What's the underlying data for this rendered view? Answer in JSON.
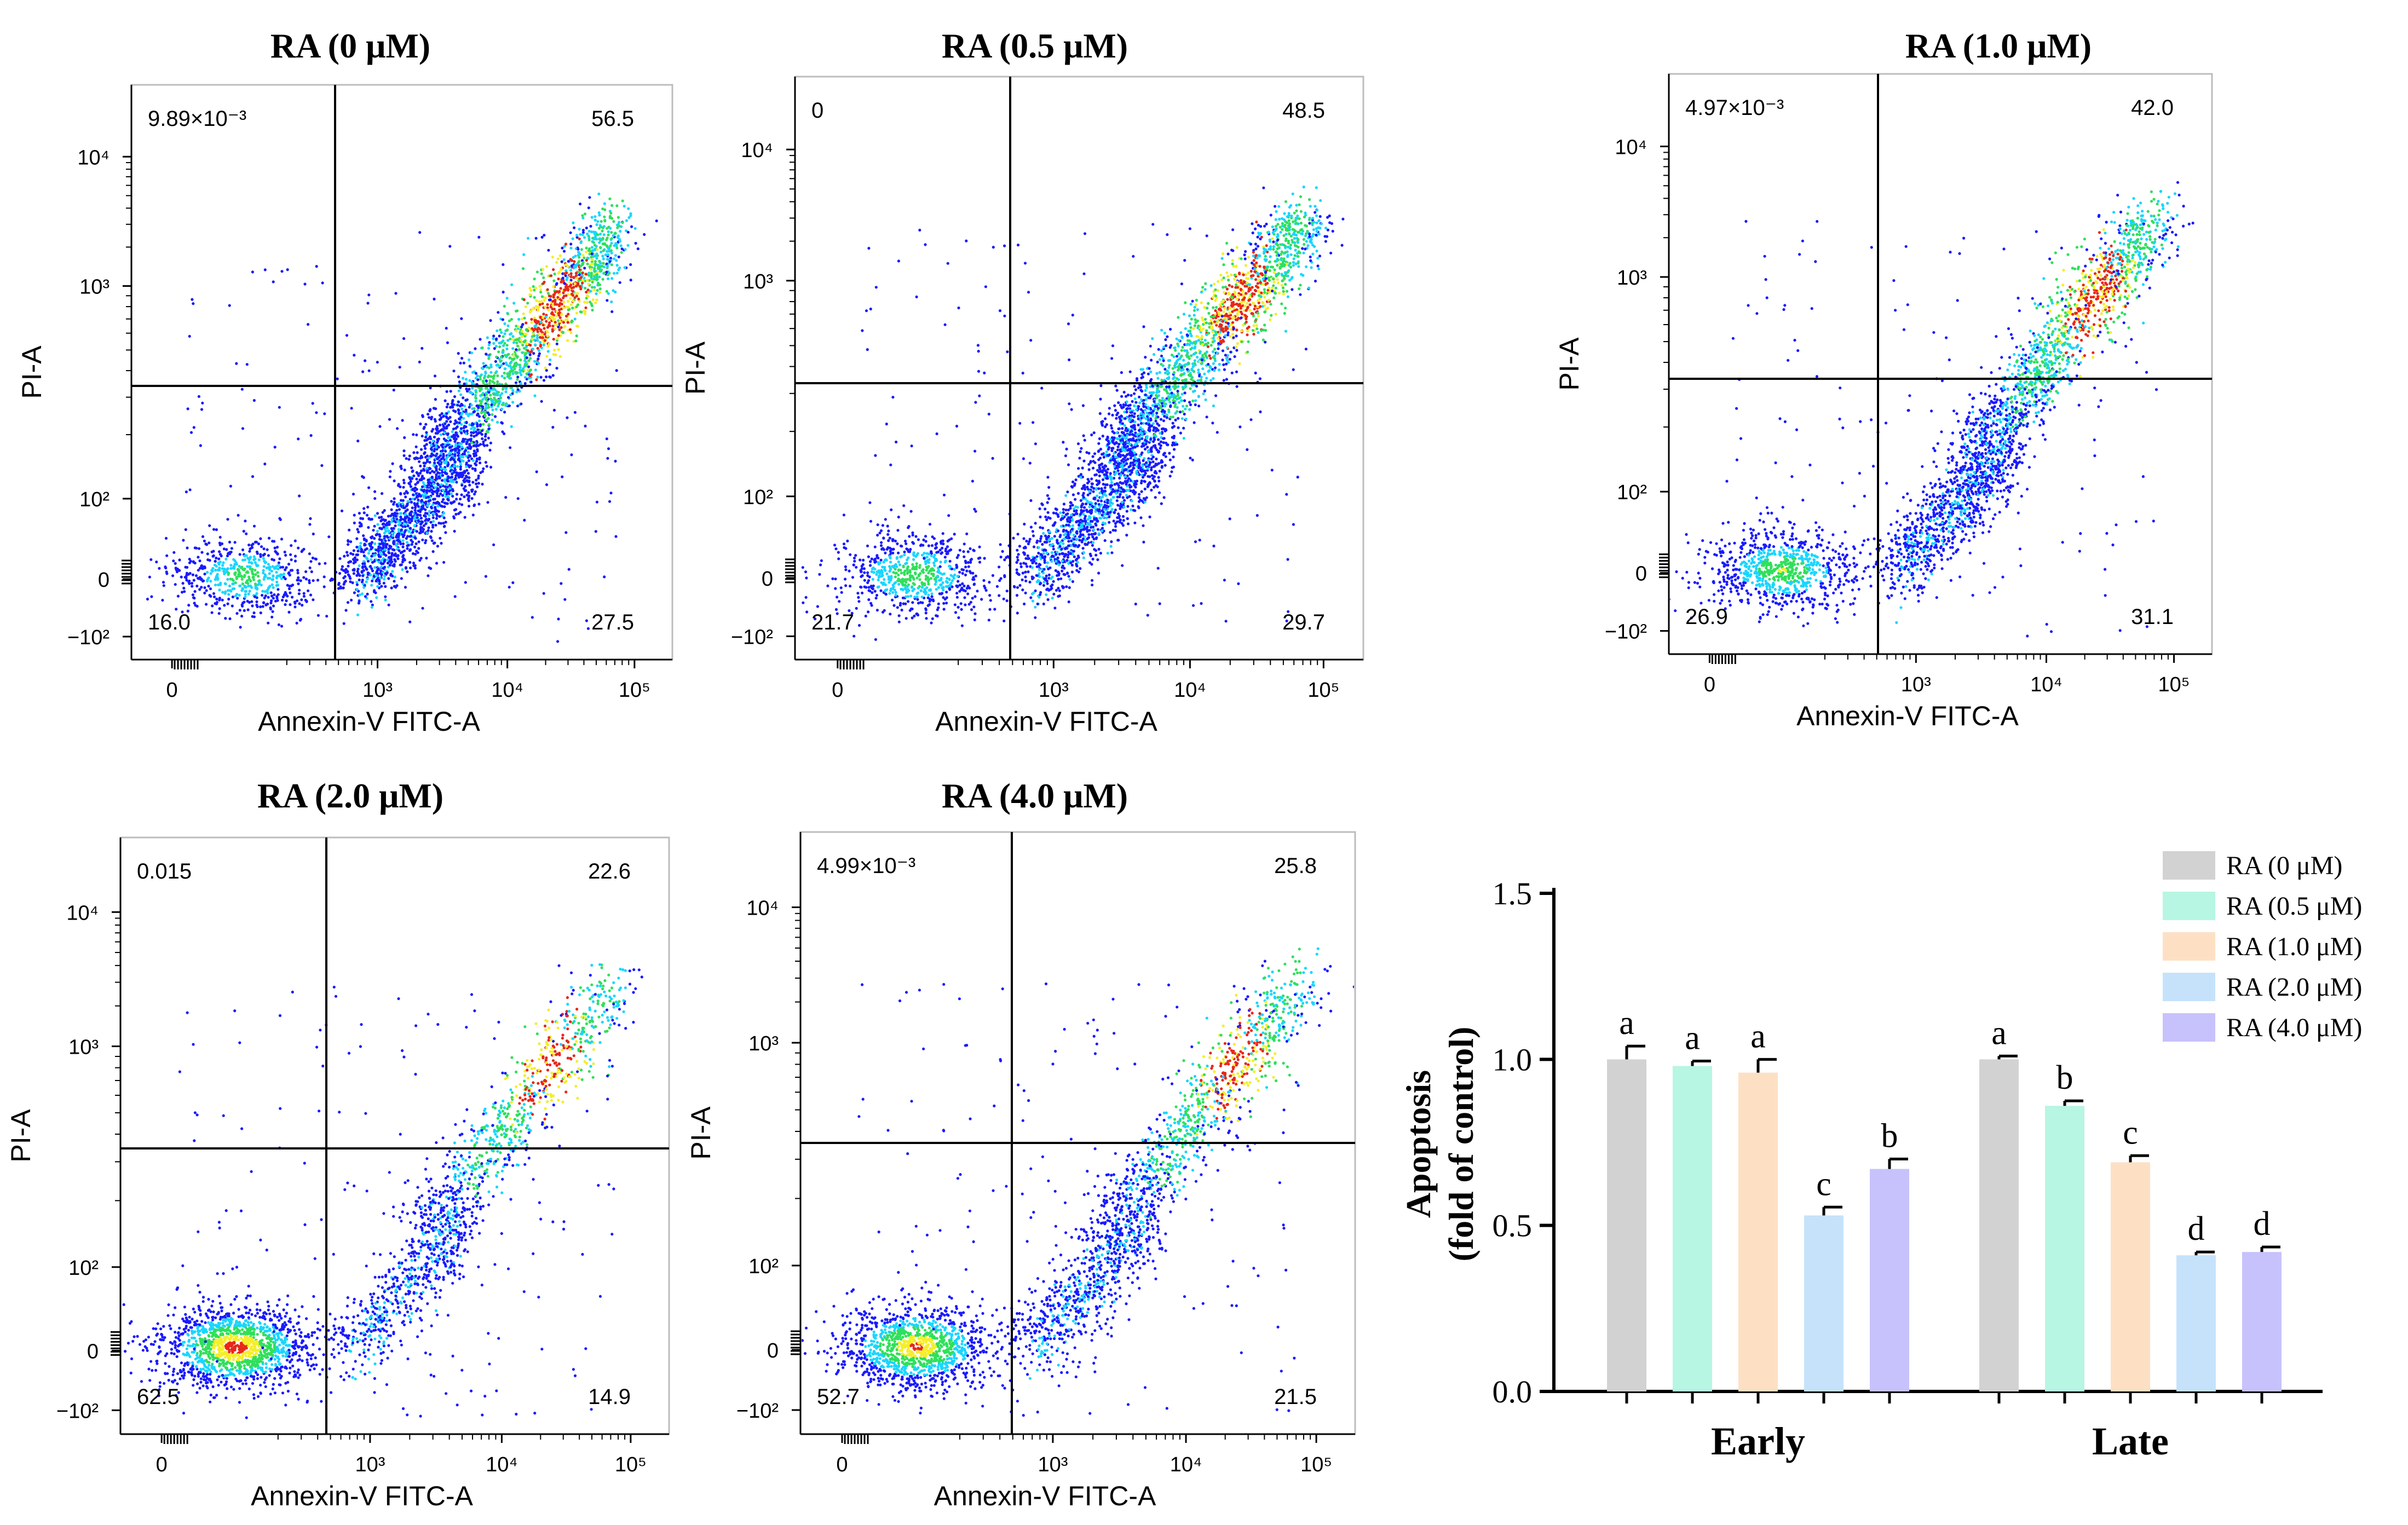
{
  "colors": {
    "axis": "#000000",
    "dot_low": "#1a1aff",
    "dot_mid": "#19d6ff",
    "dot_green": "#2fe05a",
    "dot_yellow": "#f5ee2a",
    "dot_red": "#e8261a"
  },
  "chart_data": [
    {
      "type": "scatter",
      "title": "RA (0 μM)",
      "xlabel": "Annexin-V FITC-A",
      "ylabel": "PI-A",
      "x_ticks": [
        "0",
        "10³",
        "10⁴",
        "10⁵"
      ],
      "y_ticks": [
        "10⁴",
        "10³",
        "10²",
        "0",
        "−10²"
      ],
      "quadrants": {
        "upper_left": "9.89×10⁻³",
        "upper_right": "56.5",
        "lower_left": "16.0",
        "lower_right": "27.5"
      }
    },
    {
      "type": "scatter",
      "title": "RA (0.5 μM)",
      "xlabel": "Annexin-V FITC-A",
      "ylabel": "PI-A",
      "x_ticks": [
        "0",
        "10³",
        "10⁴",
        "10⁵"
      ],
      "y_ticks": [
        "10⁴",
        "10³",
        "10²",
        "0",
        "−10²"
      ],
      "quadrants": {
        "upper_left": "0",
        "upper_right": "48.5",
        "lower_left": "21.7",
        "lower_right": "29.7"
      }
    },
    {
      "type": "scatter",
      "title": "RA (1.0 μM)",
      "xlabel": "Annexin-V FITC-A",
      "ylabel": "PI-A",
      "x_ticks": [
        "0",
        "10³",
        "10⁴",
        "10⁵"
      ],
      "y_ticks": [
        "10⁴",
        "10³",
        "10²",
        "0",
        "−10²"
      ],
      "quadrants": {
        "upper_left": "4.97×10⁻³",
        "upper_right": "42.0",
        "lower_left": "26.9",
        "lower_right": "31.1"
      }
    },
    {
      "type": "scatter",
      "title": "RA (2.0 μM)",
      "xlabel": "Annexin-V FITC-A",
      "ylabel": "PI-A",
      "x_ticks": [
        "0",
        "10³",
        "10⁴",
        "10⁵"
      ],
      "y_ticks": [
        "10⁴",
        "10³",
        "10²",
        "0",
        "−10²"
      ],
      "quadrants": {
        "upper_left": "0.015",
        "upper_right": "22.6",
        "lower_left": "62.5",
        "lower_right": "14.9"
      }
    },
    {
      "type": "scatter",
      "title": "RA (4.0 μM)",
      "xlabel": "Annexin-V FITC-A",
      "ylabel": "PI-A",
      "x_ticks": [
        "0",
        "10³",
        "10⁴",
        "10⁵"
      ],
      "y_ticks": [
        "10⁴",
        "10³",
        "10²",
        "0",
        "−10²"
      ],
      "quadrants": {
        "upper_left": "4.99×10⁻³",
        "upper_right": "25.8",
        "lower_left": "52.7",
        "lower_right": "21.5"
      }
    },
    {
      "type": "bar",
      "ylabel_line1": "Apoptosis",
      "ylabel_line2": "(fold of control)",
      "ylim": [
        0.0,
        1.5
      ],
      "y_ticks": [
        "0.0",
        "0.5",
        "1.0",
        "1.5"
      ],
      "y_tick_values": [
        0.0,
        0.5,
        1.0,
        1.5
      ],
      "categories": [
        "Early",
        "Late"
      ],
      "series": [
        {
          "name": "RA  (0 μM)",
          "color": "#d2d2d2",
          "values": [
            1.0,
            1.0
          ],
          "errors": [
            0.04,
            0.01
          ],
          "letters": [
            "a",
            "a"
          ]
        },
        {
          "name": "RA  (0.5 μM)",
          "color": "#b7f6e2",
          "values": [
            0.98,
            0.86
          ],
          "errors": [
            0.015,
            0.015
          ],
          "letters": [
            "a",
            "b"
          ]
        },
        {
          "name": "RA  (1.0 μM)",
          "color": "#fde0c4",
          "values": [
            0.96,
            0.69
          ],
          "errors": [
            0.04,
            0.02
          ],
          "letters": [
            "a",
            "c"
          ]
        },
        {
          "name": "RA  (2.0 μM)",
          "color": "#c6e2fb",
          "values": [
            0.53,
            0.41
          ],
          "errors": [
            0.025,
            0.01
          ],
          "letters": [
            "c",
            "d"
          ]
        },
        {
          "name": "RA  (4.0 μM)",
          "color": "#c7c2fb",
          "values": [
            0.67,
            0.42
          ],
          "errors": [
            0.03,
            0.015
          ],
          "letters": [
            "b",
            "d"
          ]
        }
      ]
    }
  ]
}
